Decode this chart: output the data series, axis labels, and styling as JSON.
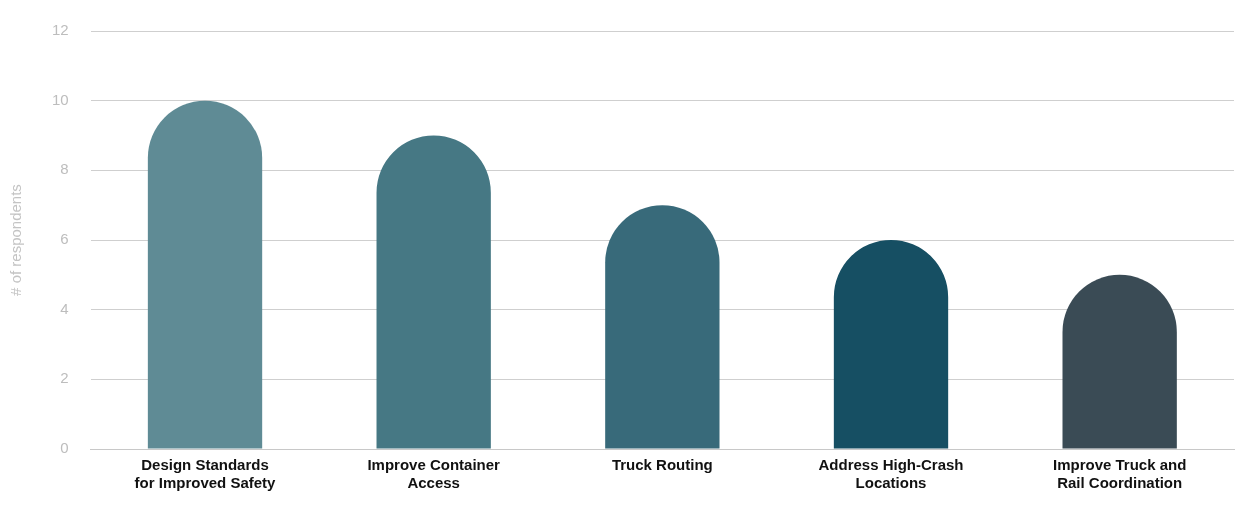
{
  "chart_data": {
    "type": "bar",
    "ylabel": "# of respondents",
    "categories": [
      "Design Standards for Improved Safety",
      "Improve Container Access",
      "Truck Routing",
      "Address High-Crash Locations",
      "Improve Truck and Rail Coordination"
    ],
    "values": [
      10,
      9,
      7,
      6,
      5
    ],
    "colors": [
      "#5f8b95",
      "#467884",
      "#386a7a",
      "#164f63",
      "#3a4b55"
    ],
    "ylim": [
      0,
      12
    ],
    "yticks": [
      0,
      2,
      4,
      6,
      8,
      10,
      12
    ],
    "grid": "y",
    "legend": false
  }
}
